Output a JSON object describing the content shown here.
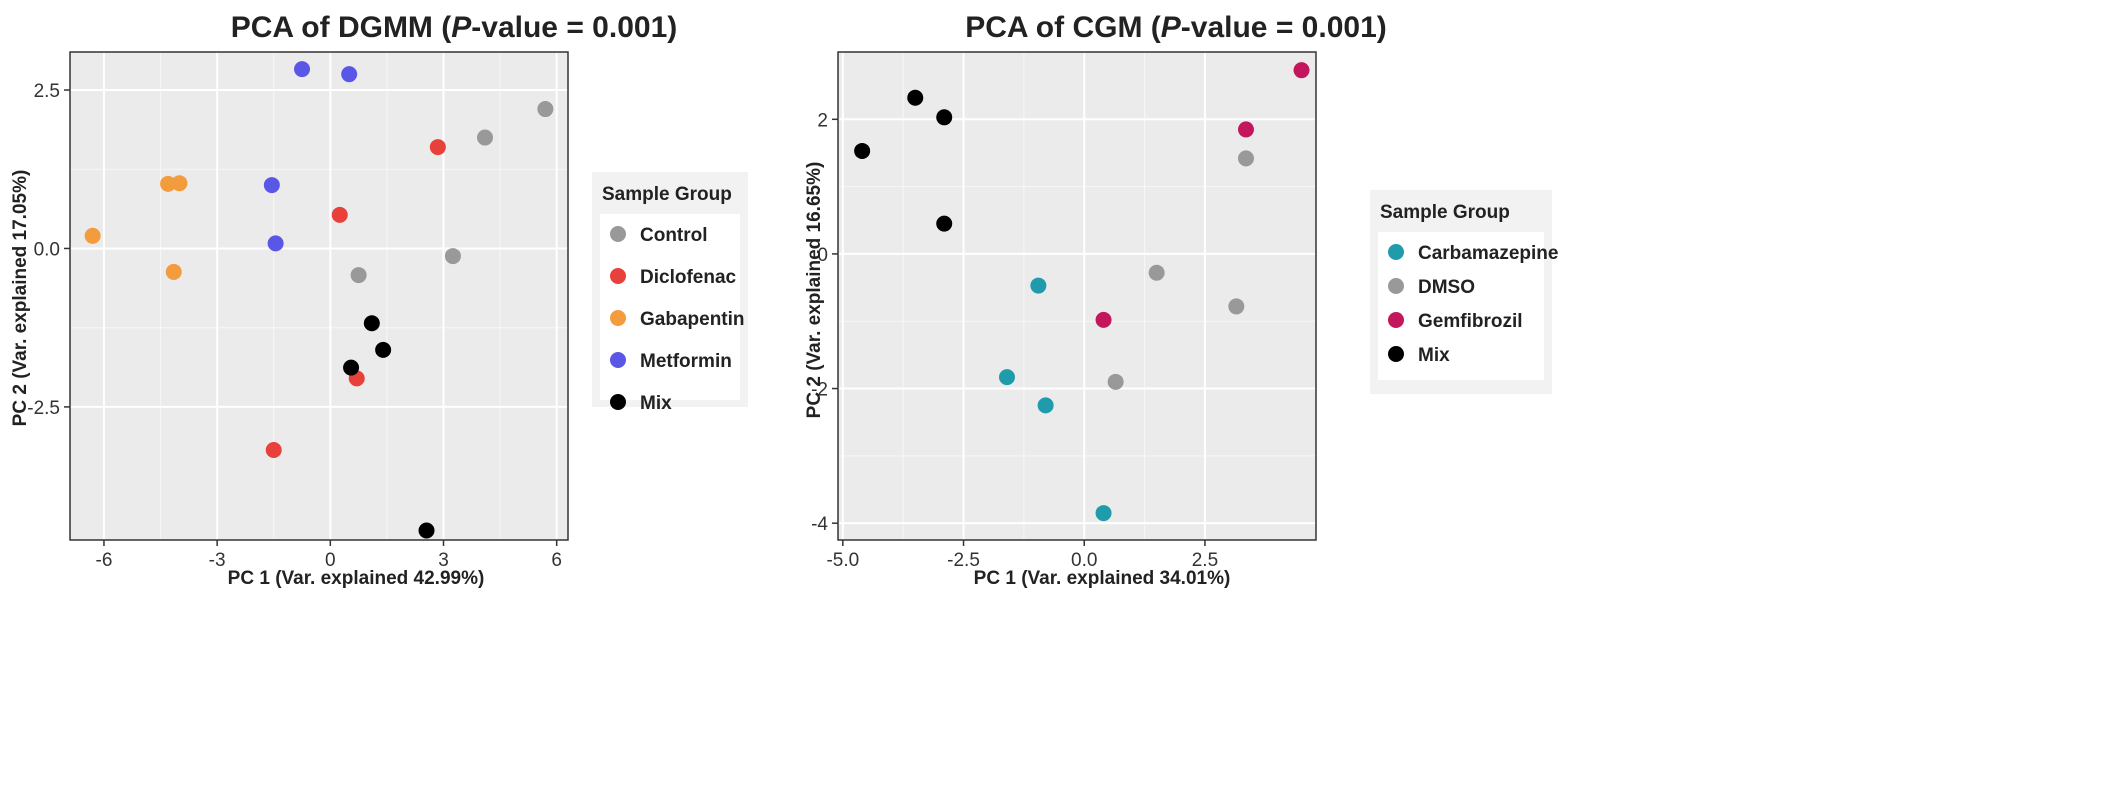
{
  "chart_data": [
    {
      "type": "scatter",
      "title_prefix": "PCA  of DGMM  (",
      "title_italic": "P",
      "title_suffix": "-value = 0.001)",
      "xlabel": "PC 1 (Var. explained 42.99%)",
      "ylabel": "PC 2 (Var. explained 17.05%)",
      "xlim": [
        -6.9,
        6.3
      ],
      "ylim": [
        -4.6,
        3.1
      ],
      "xticks": [
        -6,
        -3,
        0,
        3,
        6
      ],
      "xtick_labels": [
        "-6",
        "-3",
        "0",
        "3",
        "6"
      ],
      "yticks": [
        2.5,
        0.0,
        -2.5
      ],
      "ytick_labels": [
        "2.5",
        "0.0",
        "-2.5"
      ],
      "grid": true,
      "legend_title": "Sample Group",
      "legend_position": "right",
      "series": [
        {
          "name": "Control",
          "color": "#999999",
          "points": [
            [
              5.7,
              2.2
            ],
            [
              4.1,
              1.75
            ],
            [
              3.25,
              -0.12
            ],
            [
              0.75,
              -0.42
            ]
          ]
        },
        {
          "name": "Diclofenac",
          "color": "#e8413c",
          "points": [
            [
              2.85,
              1.6
            ],
            [
              0.25,
              0.53
            ],
            [
              0.7,
              -2.05
            ],
            [
              -1.5,
              -3.18
            ]
          ]
        },
        {
          "name": "Gabapentin",
          "color": "#f39c3d",
          "points": [
            [
              -6.3,
              0.2
            ],
            [
              -4.3,
              1.02
            ],
            [
              -4.0,
              1.03
            ],
            [
              -4.15,
              -0.37
            ]
          ]
        },
        {
          "name": "Metformin",
          "color": "#5b57e6",
          "points": [
            [
              -0.75,
              2.83
            ],
            [
              0.5,
              2.75
            ],
            [
              -1.55,
              1.0
            ],
            [
              -1.45,
              0.08
            ]
          ]
        },
        {
          "name": "Mix",
          "color": "#000000",
          "points": [
            [
              1.1,
              -1.18
            ],
            [
              1.4,
              -1.6
            ],
            [
              0.55,
              -1.88
            ],
            [
              2.55,
              -4.45
            ]
          ]
        }
      ]
    },
    {
      "type": "scatter",
      "title_prefix": "PCA  of CGM  (",
      "title_italic": "P",
      "title_suffix": "-value = 0.001)",
      "xlabel": "PC 1 (Var. explained 34.01%)",
      "ylabel": "PC 2 (Var. explained 16.65%)",
      "xlim": [
        -5.1,
        4.8
      ],
      "ylim": [
        -4.25,
        3.0
      ],
      "xticks": [
        -5.0,
        -2.5,
        0.0,
        2.5
      ],
      "xtick_labels": [
        "-5.0",
        "-2.5",
        "0.0",
        "2.5"
      ],
      "yticks": [
        2,
        0,
        -2,
        -4
      ],
      "ytick_labels": [
        "2",
        "0",
        "-2",
        "-4"
      ],
      "grid": true,
      "legend_title": "Sample Group",
      "legend_position": "right",
      "series": [
        {
          "name": "Carbamazepine",
          "color": "#1f9bab",
          "points": [
            [
              -0.95,
              -0.47
            ],
            [
              -1.6,
              -1.83
            ],
            [
              -0.8,
              -2.25
            ],
            [
              0.4,
              -3.85
            ]
          ]
        },
        {
          "name": "DMSO",
          "color": "#999999",
          "points": [
            [
              3.35,
              1.42
            ],
            [
              1.5,
              -0.28
            ],
            [
              3.15,
              -0.78
            ],
            [
              0.65,
              -1.9
            ]
          ]
        },
        {
          "name": "Gemfibrozil",
          "color": "#c2185b",
          "points": [
            [
              4.5,
              2.73
            ],
            [
              3.35,
              1.85
            ],
            [
              0.4,
              -0.98
            ]
          ]
        },
        {
          "name": "Mix",
          "color": "#000000",
          "points": [
            [
              -3.5,
              2.32
            ],
            [
              -2.9,
              2.03
            ],
            [
              -4.6,
              1.53
            ],
            [
              -2.9,
              0.45
            ]
          ]
        }
      ]
    }
  ]
}
